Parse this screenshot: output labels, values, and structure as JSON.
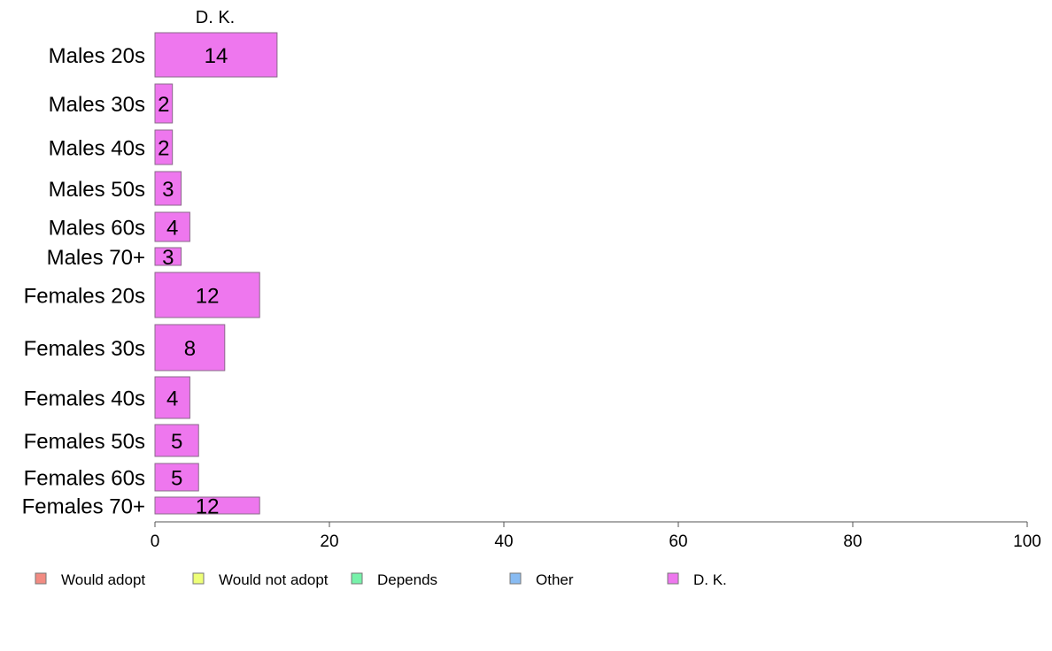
{
  "chart_data": {
    "type": "bar",
    "orientation": "horizontal",
    "series_title": "D. K.",
    "categories": [
      "Males 20s",
      "Males 30s",
      "Males 40s",
      "Males 50s",
      "Males 60s",
      "Males 70+",
      "Females 20s",
      "Females 30s",
      "Females 40s",
      "Females 50s",
      "Females 60s",
      "Females 70+"
    ],
    "values": [
      14,
      2,
      2,
      3,
      4,
      3,
      12,
      8,
      4,
      5,
      5,
      12
    ],
    "bar_labels": [
      "14",
      "2",
      "2",
      "3",
      "4",
      "3",
      "12",
      "8",
      "4",
      "5",
      "5",
      "12"
    ],
    "xlim": [
      0,
      100
    ],
    "xticks": [
      0,
      20,
      40,
      60,
      80,
      100
    ],
    "grid": false,
    "bar_color": "#ee77ee",
    "legend_placement": "bottom",
    "legend": [
      {
        "name": "Would adopt",
        "color": "#f28b82"
      },
      {
        "name": "Would not adopt",
        "color": "#eeff77"
      },
      {
        "name": "Depends",
        "color": "#77f2aa"
      },
      {
        "name": "Other",
        "color": "#88bbf2"
      },
      {
        "name": "D. K.",
        "color": "#ee77ee"
      }
    ]
  }
}
